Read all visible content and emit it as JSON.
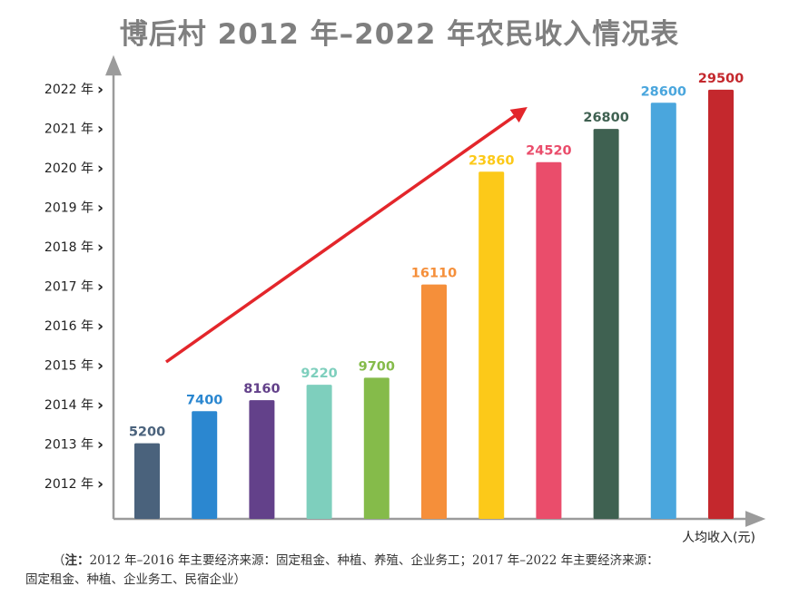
{
  "title": "博后村 2012 年–2022 年农民收入情况表",
  "note": {
    "open": "（",
    "lead": "注：",
    "line1": "2012 年–2016 年主要经济来源：固定租金、种植、养殖、企业务工；2017 年–2022 年主要经济来源：",
    "line2": "固定租金、种植、企业务工、民宿企业）"
  },
  "chart_data": {
    "type": "bar",
    "title": "博后村 2012 年–2022 年农民收入情况表",
    "xlabel": "人均收入(元)",
    "ylabel": "",
    "categories": [
      "2012 年",
      "2013 年",
      "2014 年",
      "2015 年",
      "2016 年",
      "2017 年",
      "2018 年",
      "2019 年",
      "2020 年",
      "2021 年",
      "2022 年"
    ],
    "values": [
      5200,
      7400,
      8160,
      9220,
      9700,
      16110,
      23860,
      24520,
      26800,
      28600,
      29500
    ],
    "value_labels": [
      "5200",
      "7400",
      "8160",
      "9220",
      "9700",
      "16110",
      "23860",
      "24520",
      "26800",
      "28600",
      "29500"
    ],
    "colors": [
      "#4a627c",
      "#2b87d0",
      "#63418a",
      "#7ecfbd",
      "#85bb4a",
      "#f58f3a",
      "#fcc919",
      "#ea4d6b",
      "#3f6151",
      "#4aa6dd",
      "#c4282d"
    ],
    "tick_marker": "›",
    "trend_arrow": true,
    "trend_color": "#e3262b",
    "axis_color": "#9b9b9b",
    "grid": false,
    "legend": "none"
  }
}
